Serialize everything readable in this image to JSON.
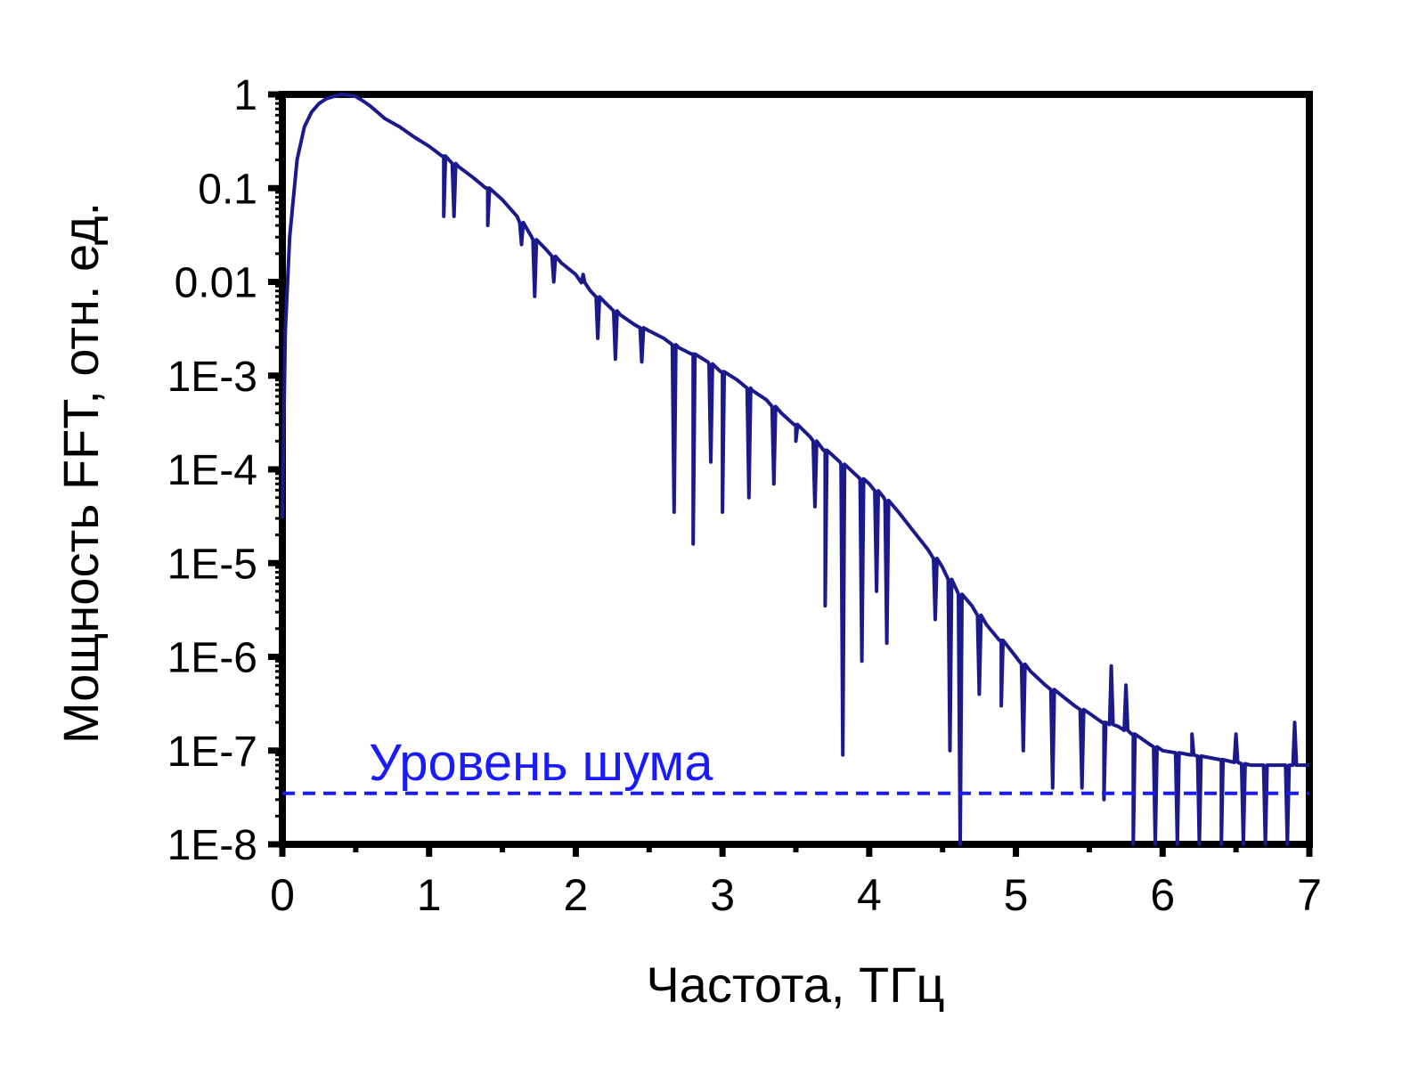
{
  "chart_data": {
    "type": "line",
    "xlabel": "Частота, ТГц",
    "ylabel": "Мощность FFT, отн. ед.",
    "xlim": [
      0,
      7
    ],
    "ylim": [
      1e-08,
      1
    ],
    "yscale": "log",
    "x_ticks": [
      0,
      1,
      2,
      3,
      4,
      5,
      6,
      7
    ],
    "x_tick_labels": [
      "0",
      "1",
      "2",
      "3",
      "4",
      "5",
      "6",
      "7"
    ],
    "y_ticks": [
      1,
      0.1,
      0.01,
      0.001,
      0.0001,
      1e-05,
      1e-06,
      1e-07,
      1e-08
    ],
    "y_tick_labels": [
      "1",
      "0.1",
      "0.01",
      "1E-3",
      "1E-4",
      "1E-5",
      "1E-6",
      "1E-7",
      "1E-8"
    ],
    "grid": false,
    "series": [
      {
        "color": "#1a1a8c",
        "x": [
          0.0,
          0.02,
          0.05,
          0.1,
          0.15,
          0.2,
          0.25,
          0.3,
          0.35,
          0.4,
          0.45,
          0.5,
          0.55,
          0.6,
          0.7,
          0.8,
          0.9,
          1.0,
          1.1,
          1.2,
          1.3,
          1.4,
          1.5,
          1.6,
          1.7,
          1.8,
          1.9,
          2.0,
          2.1,
          2.2,
          2.3,
          2.4,
          2.5,
          2.6,
          2.7,
          2.8,
          2.9,
          3.0,
          3.1,
          3.2,
          3.3,
          3.4,
          3.5,
          3.6,
          3.7,
          3.8,
          3.9,
          4.0,
          4.1,
          4.2,
          4.3,
          4.4,
          4.5,
          4.6,
          4.7,
          4.8,
          4.9,
          5.0,
          5.1,
          5.2,
          5.3,
          5.4,
          5.5,
          5.6,
          5.7,
          5.8,
          5.9,
          6.0,
          6.2,
          6.4,
          6.6,
          6.8,
          7.0
        ],
        "y": [
          3e-05,
          0.003,
          0.03,
          0.2,
          0.45,
          0.65,
          0.8,
          0.9,
          0.95,
          1.0,
          0.98,
          0.95,
          0.85,
          0.75,
          0.55,
          0.45,
          0.35,
          0.28,
          0.22,
          0.17,
          0.13,
          0.1,
          0.075,
          0.05,
          0.03,
          0.022,
          0.016,
          0.012,
          0.008,
          0.006,
          0.0045,
          0.0035,
          0.003,
          0.0025,
          0.002,
          0.0017,
          0.0014,
          0.0011,
          0.0009,
          0.0007,
          0.00055,
          0.0004,
          0.0003,
          0.00022,
          0.00016,
          0.00012,
          9e-05,
          7e-05,
          5e-05,
          3.5e-05,
          2.2e-05,
          1.4e-05,
          9e-06,
          5e-06,
          3.5e-06,
          2.2e-06,
          1.5e-06,
          1e-06,
          7e-07,
          5e-07,
          4e-07,
          3e-07,
          2.5e-07,
          2e-07,
          1.8e-07,
          1.5e-07,
          1.2e-07,
          1e-07,
          9e-08,
          8e-08,
          7e-08,
          7e-08,
          7e-08
        ]
      }
    ],
    "dips": [
      {
        "x": 1.1,
        "y": 0.05
      },
      {
        "x": 1.17,
        "y": 0.05
      },
      {
        "x": 1.4,
        "y": 0.04
      },
      {
        "x": 1.63,
        "y": 0.025
      },
      {
        "x": 1.72,
        "y": 0.007
      },
      {
        "x": 1.85,
        "y": 0.01
      },
      {
        "x": 2.05,
        "y": 0.012
      },
      {
        "x": 2.15,
        "y": 0.0025
      },
      {
        "x": 2.27,
        "y": 0.0015
      },
      {
        "x": 2.45,
        "y": 0.0014
      },
      {
        "x": 2.67,
        "y": 3.5e-05
      },
      {
        "x": 2.8,
        "y": 1.6e-05
      },
      {
        "x": 2.92,
        "y": 0.00012
      },
      {
        "x": 3.0,
        "y": 3.5e-05
      },
      {
        "x": 3.18,
        "y": 5e-05
      },
      {
        "x": 3.35,
        "y": 7e-05
      },
      {
        "x": 3.5,
        "y": 0.0002
      },
      {
        "x": 3.63,
        "y": 4e-05
      },
      {
        "x": 3.7,
        "y": 3.5e-06
      },
      {
        "x": 3.82,
        "y": 9e-08
      },
      {
        "x": 3.95,
        "y": 9e-07
      },
      {
        "x": 4.05,
        "y": 5e-06
      },
      {
        "x": 4.12,
        "y": 1.4e-06
      },
      {
        "x": 4.45,
        "y": 2.5e-06
      },
      {
        "x": 4.55,
        "y": 1e-07
      },
      {
        "x": 4.62,
        "y": 1e-08
      },
      {
        "x": 4.75,
        "y": 4e-07
      },
      {
        "x": 4.9,
        "y": 3e-07
      },
      {
        "x": 5.05,
        "y": 1e-07
      },
      {
        "x": 5.25,
        "y": 4e-08
      },
      {
        "x": 5.45,
        "y": 4e-08
      },
      {
        "x": 5.6,
        "y": 3e-08
      },
      {
        "x": 5.8,
        "y": 1e-08
      },
      {
        "x": 5.95,
        "y": 1e-08
      },
      {
        "x": 6.1,
        "y": 1e-08
      },
      {
        "x": 6.25,
        "y": 1e-08
      },
      {
        "x": 6.4,
        "y": 1e-08
      },
      {
        "x": 6.55,
        "y": 1e-08
      },
      {
        "x": 6.7,
        "y": 1e-08
      },
      {
        "x": 6.85,
        "y": 1e-08
      }
    ],
    "peaks": [
      {
        "x": 5.65,
        "y": 8e-07
      },
      {
        "x": 5.75,
        "y": 5e-07
      },
      {
        "x": 6.2,
        "y": 1.5e-07
      },
      {
        "x": 6.5,
        "y": 1.5e-07
      },
      {
        "x": 6.9,
        "y": 2e-07
      }
    ],
    "noise_level": {
      "label": "Уровень шума",
      "y": 3.5e-08,
      "color": "#1a1aff",
      "style": "dashed"
    }
  }
}
